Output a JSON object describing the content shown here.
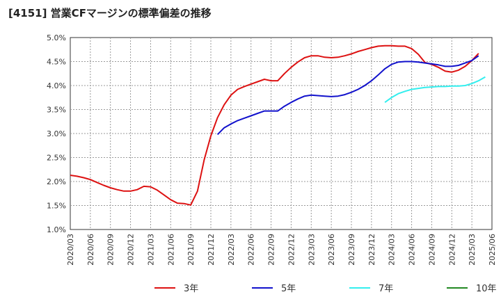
{
  "chart_data": {
    "type": "line",
    "title": "[4151]  営業CFマージンの標準偏差の推移",
    "xlabel": "",
    "ylabel": "",
    "ylim": [
      1.0,
      5.0
    ],
    "yticks": [
      "1.0%",
      "1.5%",
      "2.0%",
      "2.5%",
      "3.0%",
      "3.5%",
      "4.0%",
      "4.5%",
      "5.0%"
    ],
    "xticks": [
      "2020/03",
      "2020/06",
      "2020/09",
      "2020/12",
      "2021/03",
      "2021/06",
      "2021/09",
      "2021/12",
      "2022/03",
      "2022/06",
      "2022/09",
      "2022/12",
      "2023/03",
      "2023/06",
      "2023/09",
      "2023/12",
      "2024/03",
      "2024/06",
      "2024/09",
      "2024/12",
      "2025/03",
      "2025/06"
    ],
    "grid": true,
    "legend_position": "bottom",
    "series": [
      {
        "name": "3年",
        "color": "#dd1111",
        "points": [
          [
            "2020/03",
            2.13
          ],
          [
            "2020/04",
            2.11
          ],
          [
            "2020/05",
            2.08
          ],
          [
            "2020/06",
            2.04
          ],
          [
            "2020/07",
            1.98
          ],
          [
            "2020/08",
            1.92
          ],
          [
            "2020/09",
            1.87
          ],
          [
            "2020/10",
            1.83
          ],
          [
            "2020/11",
            1.8
          ],
          [
            "2020/12",
            1.8
          ],
          [
            "2021/01",
            1.83
          ],
          [
            "2021/02",
            1.9
          ],
          [
            "2021/03",
            1.89
          ],
          [
            "2021/04",
            1.82
          ],
          [
            "2021/05",
            1.72
          ],
          [
            "2021/06",
            1.62
          ],
          [
            "2021/07",
            1.55
          ],
          [
            "2021/08",
            1.54
          ],
          [
            "2021/09",
            1.51
          ],
          [
            "2021/10",
            1.8
          ],
          [
            "2021/11",
            2.45
          ],
          [
            "2021/12",
            2.95
          ],
          [
            "2022/01",
            3.33
          ],
          [
            "2022/02",
            3.6
          ],
          [
            "2022/03",
            3.8
          ],
          [
            "2022/04",
            3.92
          ],
          [
            "2022/05",
            3.98
          ],
          [
            "2022/06",
            4.03
          ],
          [
            "2022/07",
            4.08
          ],
          [
            "2022/08",
            4.13
          ],
          [
            "2022/09",
            4.1
          ],
          [
            "2022/10",
            4.1
          ],
          [
            "2022/11",
            4.25
          ],
          [
            "2022/12",
            4.38
          ],
          [
            "2023/01",
            4.49
          ],
          [
            "2023/02",
            4.58
          ],
          [
            "2023/03",
            4.62
          ],
          [
            "2023/04",
            4.62
          ],
          [
            "2023/05",
            4.59
          ],
          [
            "2023/06",
            4.58
          ],
          [
            "2023/07",
            4.59
          ],
          [
            "2023/08",
            4.62
          ],
          [
            "2023/09",
            4.66
          ],
          [
            "2023/10",
            4.71
          ],
          [
            "2023/11",
            4.75
          ],
          [
            "2023/12",
            4.79
          ],
          [
            "2024/01",
            4.82
          ],
          [
            "2024/02",
            4.83
          ],
          [
            "2024/03",
            4.83
          ],
          [
            "2024/04",
            4.82
          ],
          [
            "2024/05",
            4.82
          ],
          [
            "2024/06",
            4.77
          ],
          [
            "2024/07",
            4.65
          ],
          [
            "2024/08",
            4.48
          ],
          [
            "2024/09",
            4.44
          ],
          [
            "2024/10",
            4.38
          ],
          [
            "2024/11",
            4.3
          ],
          [
            "2024/12",
            4.28
          ],
          [
            "2025/01",
            4.32
          ],
          [
            "2025/02",
            4.4
          ],
          [
            "2025/03",
            4.52
          ],
          [
            "2025/04",
            4.67
          ]
        ]
      },
      {
        "name": "5年",
        "color": "#1111cc",
        "points": [
          [
            "2022/01",
            2.98
          ],
          [
            "2022/02",
            3.12
          ],
          [
            "2022/03",
            3.2
          ],
          [
            "2022/04",
            3.27
          ],
          [
            "2022/05",
            3.32
          ],
          [
            "2022/06",
            3.37
          ],
          [
            "2022/07",
            3.42
          ],
          [
            "2022/08",
            3.47
          ],
          [
            "2022/09",
            3.47
          ],
          [
            "2022/10",
            3.47
          ],
          [
            "2022/11",
            3.57
          ],
          [
            "2022/12",
            3.65
          ],
          [
            "2023/01",
            3.72
          ],
          [
            "2023/02",
            3.78
          ],
          [
            "2023/03",
            3.8
          ],
          [
            "2023/04",
            3.79
          ],
          [
            "2023/05",
            3.78
          ],
          [
            "2023/06",
            3.77
          ],
          [
            "2023/07",
            3.78
          ],
          [
            "2023/08",
            3.81
          ],
          [
            "2023/09",
            3.86
          ],
          [
            "2023/10",
            3.92
          ],
          [
            "2023/11",
            4.0
          ],
          [
            "2023/12",
            4.1
          ],
          [
            "2024/01",
            4.22
          ],
          [
            "2024/02",
            4.35
          ],
          [
            "2024/03",
            4.44
          ],
          [
            "2024/04",
            4.49
          ],
          [
            "2024/05",
            4.5
          ],
          [
            "2024/06",
            4.5
          ],
          [
            "2024/07",
            4.49
          ],
          [
            "2024/08",
            4.47
          ],
          [
            "2024/09",
            4.45
          ],
          [
            "2024/10",
            4.43
          ],
          [
            "2024/11",
            4.4
          ],
          [
            "2024/12",
            4.4
          ],
          [
            "2025/01",
            4.42
          ],
          [
            "2025/02",
            4.47
          ],
          [
            "2025/03",
            4.52
          ],
          [
            "2025/04",
            4.62
          ]
        ]
      },
      {
        "name": "7年",
        "color": "#33eeee",
        "points": [
          [
            "2024/02",
            3.65
          ],
          [
            "2024/03",
            3.75
          ],
          [
            "2024/04",
            3.83
          ],
          [
            "2024/05",
            3.88
          ],
          [
            "2024/06",
            3.92
          ],
          [
            "2024/07",
            3.94
          ],
          [
            "2024/08",
            3.96
          ],
          [
            "2024/09",
            3.97
          ],
          [
            "2024/10",
            3.98
          ],
          [
            "2024/11",
            3.98
          ],
          [
            "2024/12",
            3.99
          ],
          [
            "2025/01",
            3.99
          ],
          [
            "2025/02",
            4.0
          ],
          [
            "2025/03",
            4.04
          ],
          [
            "2025/04",
            4.1
          ],
          [
            "2025/05",
            4.18
          ]
        ]
      },
      {
        "name": "10年",
        "color": "#228822",
        "points": []
      }
    ]
  }
}
